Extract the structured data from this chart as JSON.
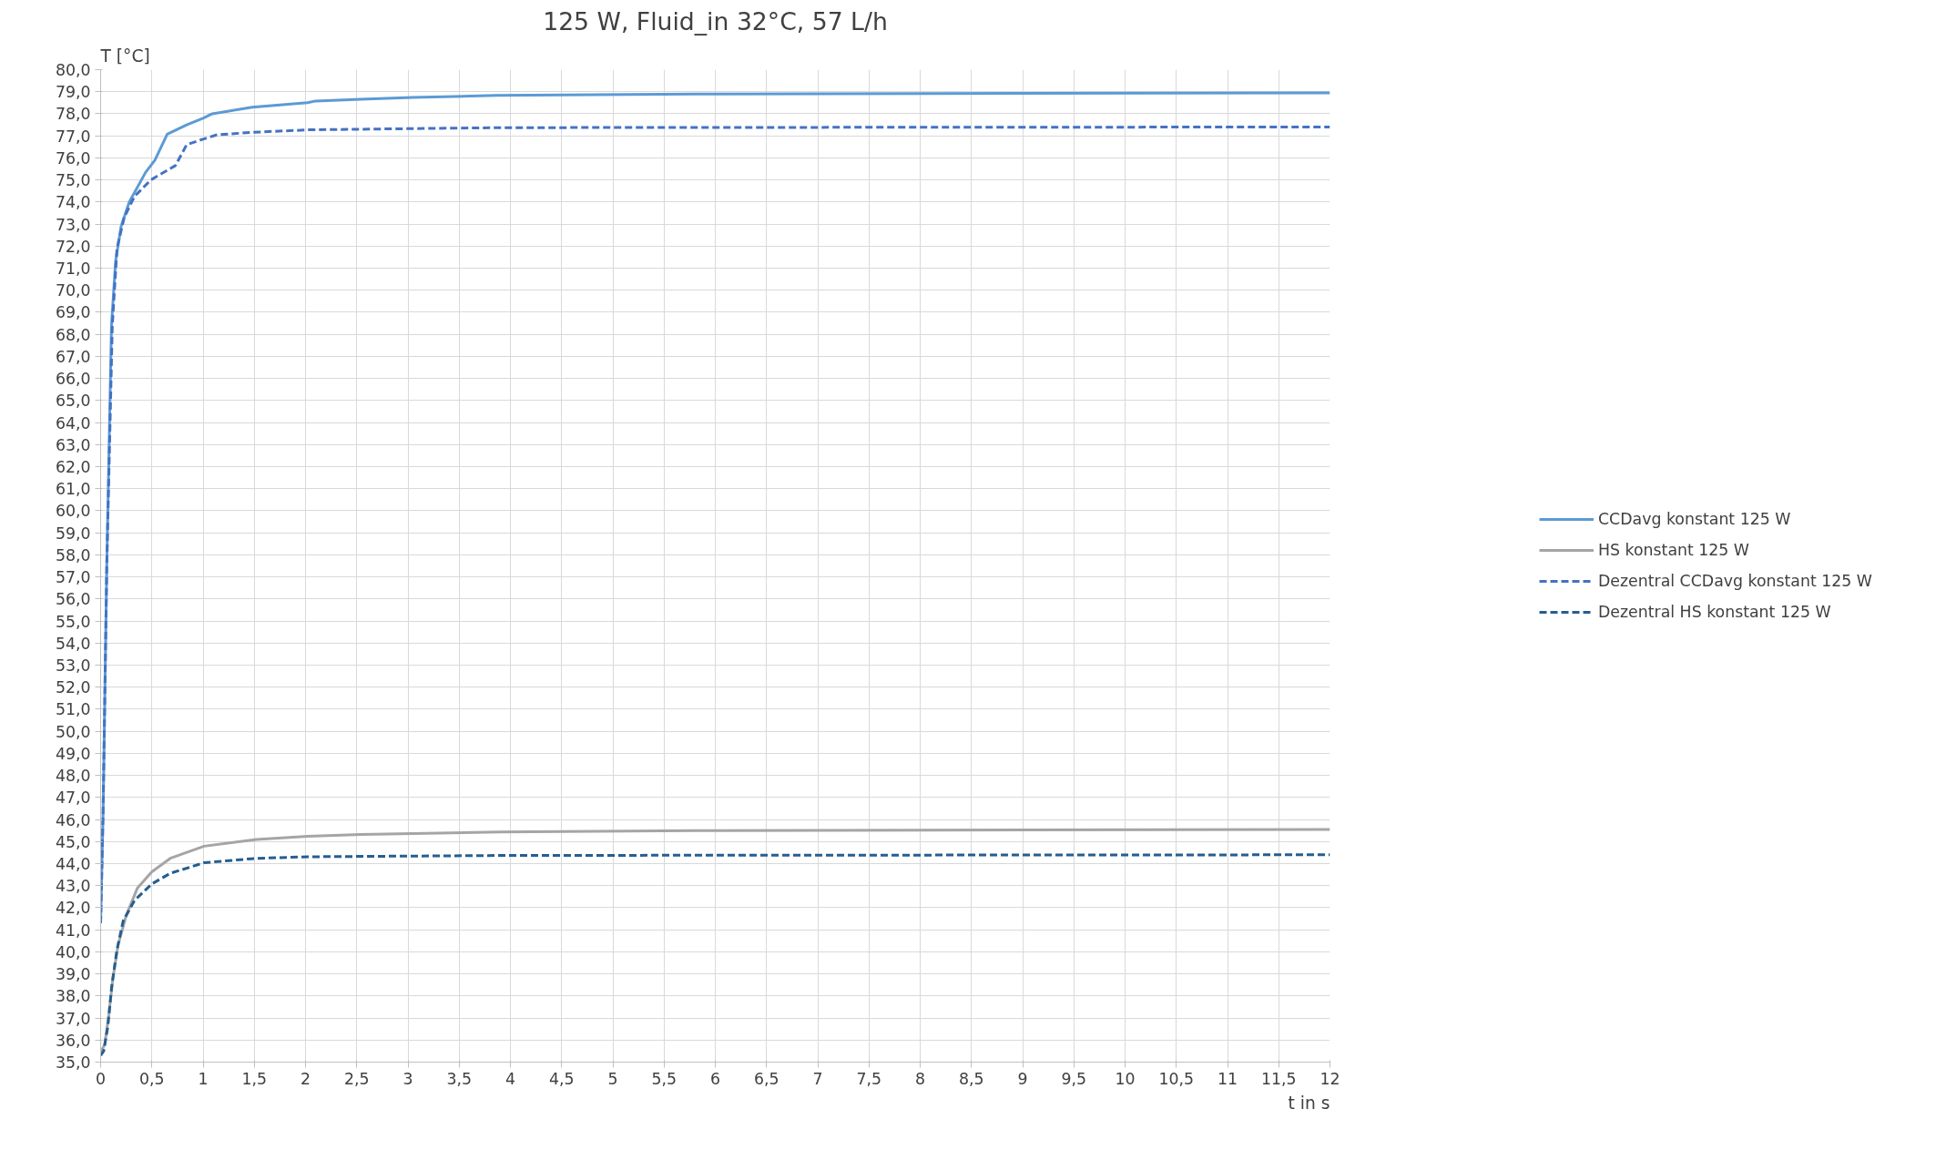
{
  "chart_data": {
    "type": "line",
    "title": "125 W, Fluid_in 32°C, 57 L/h",
    "xlabel": "t in s",
    "ylabel": "T [°C]",
    "xlim": [
      0,
      12
    ],
    "xticks": [
      0,
      {
        "value": 0.5,
        "label": "0,5"
      },
      1,
      {
        "value": 1.5,
        "label": "1,5"
      },
      2,
      {
        "value": 2.5,
        "label": "2,5"
      },
      3,
      {
        "value": 3.5,
        "label": "3,5"
      },
      4,
      {
        "value": 4.5,
        "label": "4,5"
      },
      5,
      {
        "value": 5.5,
        "label": "5,5"
      },
      6,
      {
        "value": 6.5,
        "label": "6,5"
      },
      7,
      {
        "value": 7.5,
        "label": "7,5"
      },
      8,
      {
        "value": 8.5,
        "label": "8,5"
      },
      9,
      {
        "value": 9.5,
        "label": "9,5"
      },
      10,
      {
        "value": 10.5,
        "label": "10,5"
      },
      11,
      {
        "value": 11.5,
        "label": "11,5"
      },
      12
    ],
    "ylim": [
      35,
      80
    ],
    "yticks": [
      {
        "value": 35,
        "label": "35,0"
      },
      {
        "value": 36,
        "label": "36,0"
      },
      {
        "value": 37,
        "label": "37,0"
      },
      {
        "value": 38,
        "label": "38,0"
      },
      {
        "value": 39,
        "label": "39,0"
      },
      {
        "value": 40,
        "label": "40,0"
      },
      {
        "value": 41,
        "label": "41,0"
      },
      {
        "value": 42,
        "label": "42,0"
      },
      {
        "value": 43,
        "label": "43,0"
      },
      {
        "value": 44,
        "label": "44,0"
      },
      {
        "value": 45,
        "label": "45,0"
      },
      {
        "value": 46,
        "label": "46,0"
      },
      {
        "value": 47,
        "label": "47,0"
      },
      {
        "value": 48,
        "label": "48,0"
      },
      {
        "value": 49,
        "label": "49,0"
      },
      {
        "value": 50,
        "label": "50,0"
      },
      {
        "value": 51,
        "label": "51,0"
      },
      {
        "value": 52,
        "label": "52,0"
      },
      {
        "value": 53,
        "label": "53,0"
      },
      {
        "value": 54,
        "label": "54,0"
      },
      {
        "value": 55,
        "label": "55,0"
      },
      {
        "value": 56,
        "label": "56,0"
      },
      {
        "value": 57,
        "label": "57,0"
      },
      {
        "value": 58,
        "label": "58,0"
      },
      {
        "value": 59,
        "label": "59,0"
      },
      {
        "value": 60,
        "label": "60,0"
      },
      {
        "value": 61,
        "label": "61,0"
      },
      {
        "value": 62,
        "label": "62,0"
      },
      {
        "value": 63,
        "label": "63,0"
      },
      {
        "value": 64,
        "label": "64,0"
      },
      {
        "value": 65,
        "label": "65,0"
      },
      {
        "value": 66,
        "label": "66,0"
      },
      {
        "value": 67,
        "label": "67,0"
      },
      {
        "value": 68,
        "label": "68,0"
      },
      {
        "value": 69,
        "label": "69,0"
      },
      {
        "value": 70,
        "label": "70,0"
      },
      {
        "value": 71,
        "label": "71,0"
      },
      {
        "value": 72,
        "label": "72,0"
      },
      {
        "value": 73,
        "label": "73,0"
      },
      {
        "value": 74,
        "label": "74,0"
      },
      {
        "value": 75,
        "label": "75,0"
      },
      {
        "value": 76,
        "label": "76,0"
      },
      {
        "value": 77,
        "label": "77,0"
      },
      {
        "value": 78,
        "label": "78,0"
      },
      {
        "value": 79,
        "label": "79,0"
      },
      {
        "value": 80,
        "label": "80,0"
      }
    ],
    "grid": true,
    "legend": "right",
    "series": [
      {
        "name": "CCDavg konstant 125 W",
        "color": "#5b9bd5",
        "line_style": "solid",
        "x": [
          0,
          0.024,
          0.06,
          0.106,
          0.146,
          0.2,
          0.28,
          0.44,
          0.53,
          0.65,
          0.84,
          1.0,
          1.09,
          1.48,
          2.02,
          2.1,
          2.54,
          3.05,
          3.87,
          6,
          9,
          12
        ],
        "values": [
          41.3,
          46.3,
          57.5,
          68.4,
          71.3,
          72.9,
          74.0,
          75.35,
          75.9,
          77.07,
          77.5,
          77.8,
          78.0,
          78.3,
          78.5,
          78.58,
          78.66,
          78.74,
          78.83,
          78.9,
          78.93,
          78.95
        ]
      },
      {
        "name": "HS konstant 125 W",
        "color": "#a5a5a5",
        "line_style": "solid",
        "x": [
          0,
          0.04,
          0.08,
          0.12,
          0.17,
          0.25,
          0.36,
          0.5,
          0.68,
          1.01,
          1.52,
          2.02,
          2.54,
          3.89,
          6,
          9,
          12
        ],
        "values": [
          35.45,
          35.8,
          37.15,
          38.8,
          40.3,
          41.65,
          42.9,
          43.63,
          44.24,
          44.79,
          45.09,
          45.24,
          45.32,
          45.43,
          45.5,
          45.53,
          45.55
        ]
      },
      {
        "name": "Dezentral CCDavg konstant 125 W",
        "color": "#4472c4",
        "line_style": "dashed",
        "x": [
          0,
          0.024,
          0.06,
          0.114,
          0.16,
          0.23,
          0.33,
          0.49,
          0.73,
          0.84,
          1.0,
          1.13,
          1.48,
          2.02,
          2.54,
          3.87,
          6,
          9,
          12
        ],
        "values": [
          41.3,
          46.3,
          57.5,
          68.4,
          71.9,
          73.3,
          74.25,
          75.0,
          75.65,
          76.6,
          76.85,
          77.04,
          77.16,
          77.27,
          77.3,
          77.37,
          77.38,
          77.39,
          77.4
        ]
      },
      {
        "name": "Dezentral HS konstant 125 W",
        "color": "#255e91",
        "line_style": "dashed",
        "x": [
          0,
          0.03,
          0.07,
          0.11,
          0.16,
          0.22,
          0.33,
          0.5,
          0.68,
          1.01,
          1.52,
          2.02,
          3.89,
          6,
          9,
          12
        ],
        "values": [
          35.3,
          35.5,
          36.6,
          38.5,
          40.1,
          41.4,
          42.33,
          43.08,
          43.56,
          44.04,
          44.24,
          44.31,
          44.37,
          44.38,
          44.39,
          44.4
        ]
      }
    ]
  }
}
